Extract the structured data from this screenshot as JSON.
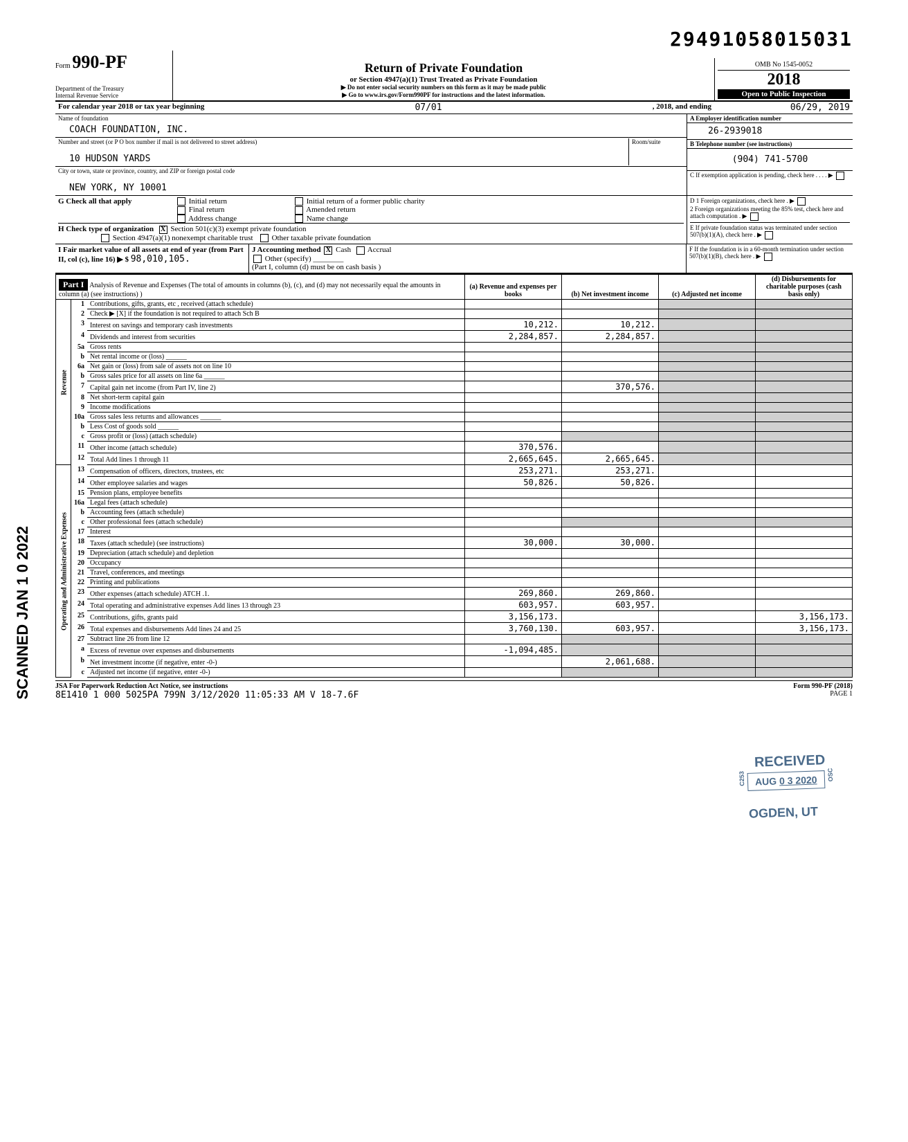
{
  "dln": "29491058015031",
  "omb": "OMB No 1545-0052",
  "form_year": "2018",
  "open": "Open to Public Inspection",
  "header": {
    "form_word": "Form",
    "form_num": "990-PF",
    "title": "Return of Private Foundation",
    "sub1": "or Section 4947(a)(1) Trust Treated as Private Foundation",
    "sub2": "Do not enter social security numbers on this form as it may be made public",
    "sub3": "Go to www.irs.gov/Form990PF for instructions and the latest information.",
    "dept1": "Department of the Treasury",
    "dept2": "Internal Revenue Service"
  },
  "cal": {
    "label": "For calendar year 2018 or tax year beginning",
    "begin": "07/01",
    "mid": ", 2018, and ending",
    "end": "06/29",
    "endyr": "2019"
  },
  "foundation": {
    "name_label": "Name of foundation",
    "name": "COACH FOUNDATION, INC.",
    "addr_label": "Number and street (or P O box number if mail is not delivered to street address)",
    "addr": "10 HUDSON YARDS",
    "room_label": "Room/suite",
    "city_label": "City or town, state or province, country, and ZIP or foreign postal code",
    "city": "NEW YORK, NY 10001"
  },
  "right": {
    "a_label": "A  Employer identification number",
    "ein": "26-2939018",
    "b_label": "B  Telephone number (see instructions)",
    "phone": "(904) 741-5700",
    "c_label": "C  If exemption application is pending, check here",
    "d1": "D 1  Foreign organizations, check here",
    "d2": "2  Foreign organizations meeting the 85% test, check here and attach computation",
    "e": "E  If private foundation status was terminated under section 507(b)(1)(A), check here",
    "f": "F  If the foundation is in a 60-month termination under section 507(b)(1)(B), check here"
  },
  "g": {
    "label": "G  Check all that apply",
    "opts": [
      "Initial return",
      "Final return",
      "Address change",
      "Initial return of a former public charity",
      "Amended return",
      "Name change"
    ]
  },
  "h": {
    "label": "H  Check type of organization",
    "opt1": "Section 501(c)(3) exempt private foundation",
    "opt2": "Section 4947(a)(1) nonexempt charitable trust",
    "opt3": "Other taxable private foundation"
  },
  "i": {
    "label": "I  Fair market value of all assets at end of year (from Part II, col (c), line 16) ▶ $",
    "value": "98,010,105.",
    "j_label": "J Accounting method",
    "cash": "Cash",
    "accrual": "Accrual",
    "other": "Other (specify)",
    "note": "(Part I, column (d) must be on cash basis )"
  },
  "part1": {
    "hdr": "Part I",
    "title": "Analysis of Revenue and Expenses (The total of amounts in columns (b), (c), and (d) may not necessarily equal the amounts in column (a) (see instructions) )",
    "col_a": "(a) Revenue and expenses per books",
    "col_b": "(b) Net investment income",
    "col_c": "(c) Adjusted net income",
    "col_d": "(d) Disbursements for charitable purposes (cash basis only)"
  },
  "side": {
    "rev": "Revenue",
    "exp": "Operating and Administrative Expenses",
    "scanned": "SCANNED  JAN 1 0 2022"
  },
  "rows": [
    {
      "n": "1",
      "d": "Contributions, gifts, grants, etc , received (attach schedule)"
    },
    {
      "n": "2",
      "d": "Check ▶ [X] if the foundation is not required to attach Sch B"
    },
    {
      "n": "3",
      "d": "Interest on savings and temporary cash investments",
      "a": "10,212.",
      "b": "10,212."
    },
    {
      "n": "4",
      "d": "Dividends and interest from securities",
      "a": "2,284,857.",
      "b": "2,284,857."
    },
    {
      "n": "5a",
      "d": "Gross rents"
    },
    {
      "n": "b",
      "d": "Net rental income or (loss) ______"
    },
    {
      "n": "6a",
      "d": "Net gain or (loss) from sale of assets not on line 10"
    },
    {
      "n": "b",
      "d": "Gross sales price for all assets on line 6a ______"
    },
    {
      "n": "7",
      "d": "Capital gain net income (from Part IV, line 2)",
      "b": "370,576."
    },
    {
      "n": "8",
      "d": "Net short-term capital gain"
    },
    {
      "n": "9",
      "d": "Income modifications"
    },
    {
      "n": "10a",
      "d": "Gross sales less returns and allowances ______"
    },
    {
      "n": "b",
      "d": "Less Cost of goods sold ______"
    },
    {
      "n": "c",
      "d": "Gross profit or (loss) (attach schedule)"
    },
    {
      "n": "11",
      "d": "Other income (attach schedule)",
      "a": "370,576."
    },
    {
      "n": "12",
      "d": "Total  Add lines 1 through 11",
      "a": "2,665,645.",
      "b": "2,665,645."
    },
    {
      "n": "13",
      "d": "Compensation of officers, directors, trustees, etc",
      "a": "253,271.",
      "b": "253,271."
    },
    {
      "n": "14",
      "d": "Other employee salaries and wages",
      "a": "50,826.",
      "b": "50,826."
    },
    {
      "n": "15",
      "d": "Pension plans, employee benefits"
    },
    {
      "n": "16a",
      "d": "Legal fees (attach schedule)"
    },
    {
      "n": "b",
      "d": "Accounting fees (attach schedule)"
    },
    {
      "n": "c",
      "d": "Other professional fees (attach schedule)"
    },
    {
      "n": "17",
      "d": "Interest"
    },
    {
      "n": "18",
      "d": "Taxes (attach schedule) (see instructions)",
      "a": "30,000.",
      "b": "30,000."
    },
    {
      "n": "19",
      "d": "Depreciation (attach schedule) and depletion"
    },
    {
      "n": "20",
      "d": "Occupancy"
    },
    {
      "n": "21",
      "d": "Travel, conferences, and meetings"
    },
    {
      "n": "22",
      "d": "Printing and publications"
    },
    {
      "n": "23",
      "d": "Other expenses (attach schedule) ATCH .1.",
      "a": "269,860.",
      "b": "269,860."
    },
    {
      "n": "24",
      "d": "Total operating and administrative expenses  Add lines 13 through 23",
      "a": "603,957.",
      "b": "603,957."
    },
    {
      "n": "25",
      "d": "Contributions, gifts, grants paid",
      "a": "3,156,173.",
      "dd": "3,156,173."
    },
    {
      "n": "26",
      "d": "Total expenses and disbursements  Add lines 24 and 25",
      "a": "3,760,130.",
      "b": "603,957.",
      "dd": "3,156,173."
    },
    {
      "n": "27",
      "d": "Subtract line 26 from line 12"
    },
    {
      "n": "a",
      "d": "Excess of revenue over expenses and disbursements",
      "a": "-1,094,485."
    },
    {
      "n": "b",
      "d": "Net investment income (if negative, enter -0-)",
      "b": "2,061,688."
    },
    {
      "n": "c",
      "d": "Adjusted net income (if negative, enter -0-)"
    }
  ],
  "stamps": {
    "recv": "RECEIVED",
    "date_pre": "AUG",
    "date": "0 3 2020",
    "ogden": "OGDEN, UT",
    "c253": "C253",
    "osc": "OSC"
  },
  "footer": {
    "left1": "JSA For Paperwork Reduction Act Notice, see instructions",
    "left2": "8E1410 1 000   5025PA 799N  3/12/2020   11:05:33 AM  V 18-7.6F",
    "right1": "Form 990-PF (2018)",
    "right2": "PAGE 1"
  }
}
